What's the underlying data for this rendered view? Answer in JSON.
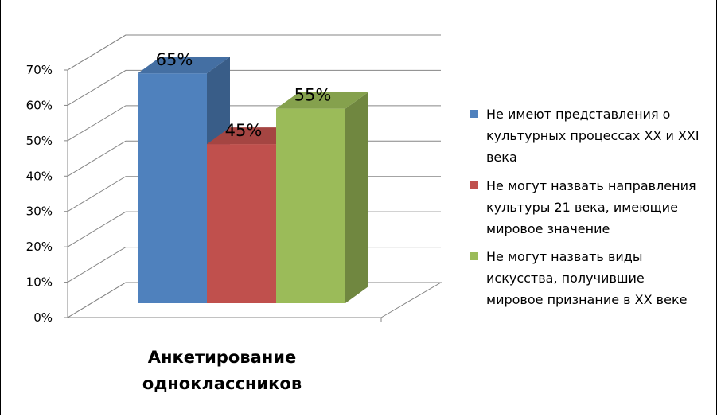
{
  "chart_data": {
    "type": "bar",
    "categories": [
      "Анкетирование одноклассников"
    ],
    "category_label_lines": [
      "Анкетирование",
      "одноклассников"
    ],
    "series": [
      {
        "name": "Не имеют представления о культурных процессах XX и XXI века",
        "legend_lines": [
          "Не имеют представления о",
          "культурных процессах XX и XXI",
          "века"
        ],
        "values": [
          0.65
        ],
        "label": "65%",
        "color": "#4F81BD"
      },
      {
        "name": "Не могут назвать направления культуры 21 века, имеющие мировое значение",
        "legend_lines": [
          "Не могут назвать направления",
          "культуры 21 века, имеющие",
          "мировое значение"
        ],
        "values": [
          0.45
        ],
        "label": "45%",
        "color": "#C0504D"
      },
      {
        "name": "Не могут назвать виды искусства, получившие мировое признание в XX веке",
        "legend_lines": [
          "Не могут назвать виды",
          "искусства, получившие",
          "мировое признание в XX веке"
        ],
        "values": [
          0.55
        ],
        "label": "55%",
        "color": "#9BBB59"
      }
    ],
    "yticks": [
      "0%",
      "10%",
      "20%",
      "30%",
      "40%",
      "50%",
      "60%",
      "70%"
    ],
    "ylim": [
      0,
      0.7
    ],
    "grid": true,
    "legend": "right",
    "three_d": true
  }
}
